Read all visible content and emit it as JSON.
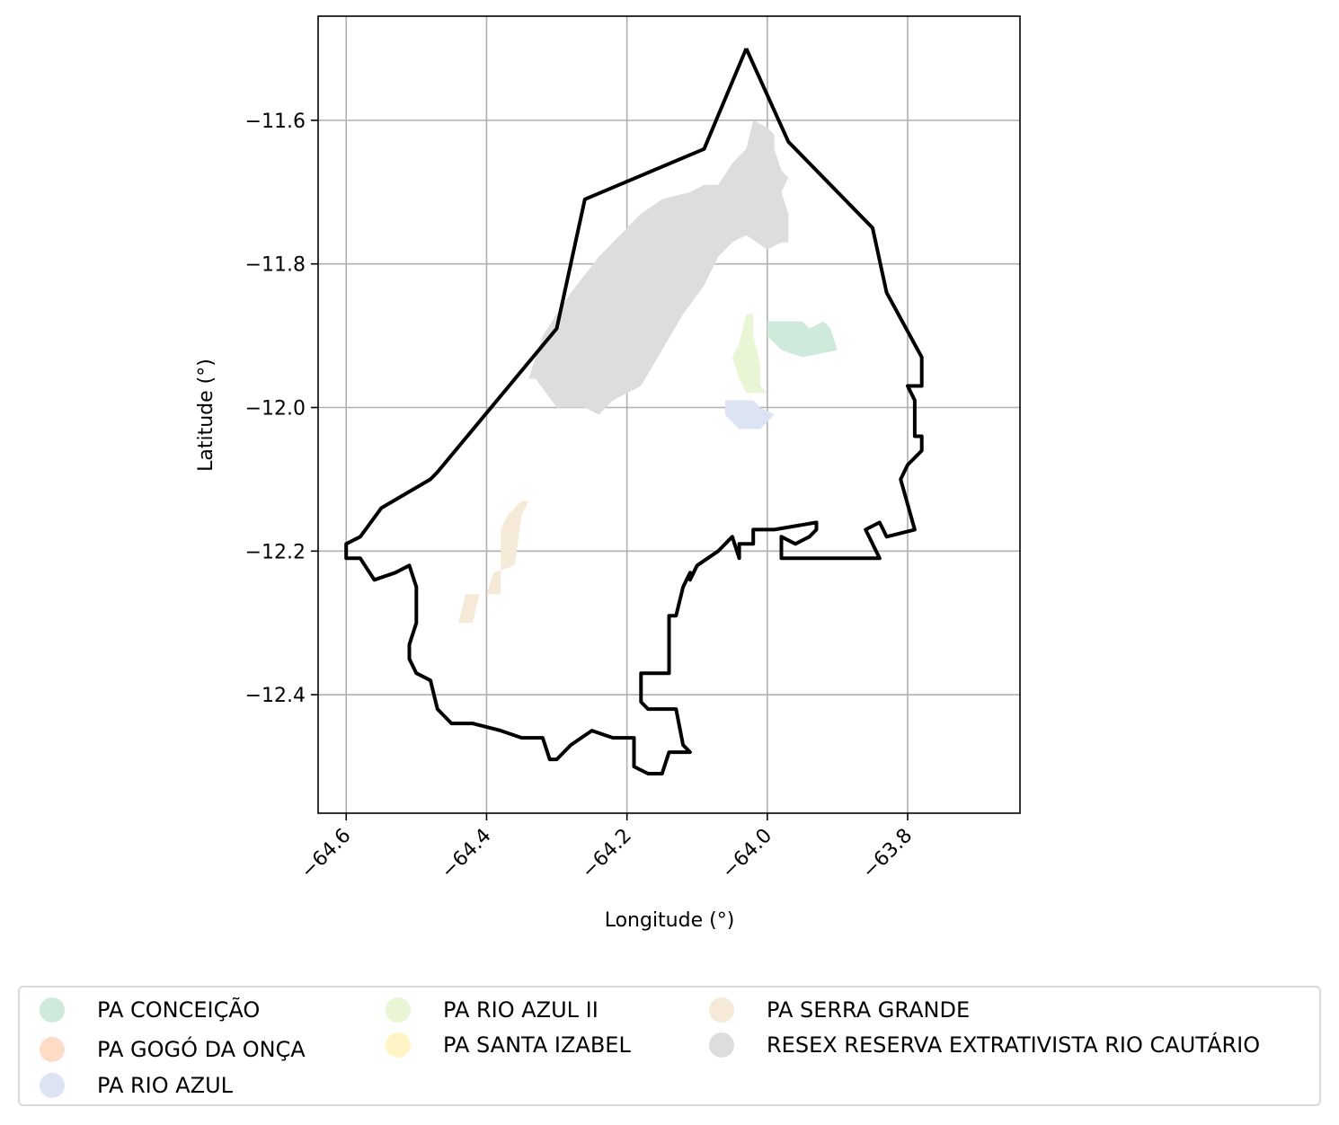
{
  "chart_data": {
    "type": "map",
    "xlabel": "Longitude (°)",
    "ylabel": "Latitude (°)",
    "xlim": [
      -64.64,
      -63.64
    ],
    "ylim": [
      -12.565,
      -11.455
    ],
    "xticks": [
      -64.6,
      -64.4,
      -64.2,
      -64.0,
      -63.8
    ],
    "xtick_labels": [
      "−64.6",
      "−64.4",
      "−64.2",
      "−64.0",
      "−63.8"
    ],
    "yticks": [
      -11.6,
      -11.8,
      -12.0,
      -12.2,
      -12.4
    ],
    "ytick_labels": [
      "−11.6",
      "−11.8",
      "−12.0",
      "−12.2",
      "−12.4"
    ],
    "grid": true,
    "legend_position": "bottom",
    "boundary": {
      "color": "#000000",
      "coordinates": [
        [
          -64.03,
          -11.5
        ],
        [
          -63.97,
          -11.63
        ],
        [
          -63.85,
          -11.75
        ],
        [
          -63.83,
          -11.84
        ],
        [
          -63.78,
          -11.93
        ],
        [
          -63.78,
          -11.97
        ],
        [
          -63.8,
          -11.97
        ],
        [
          -63.79,
          -11.99
        ],
        [
          -63.79,
          -12.04
        ],
        [
          -63.78,
          -12.04
        ],
        [
          -63.78,
          -12.06
        ],
        [
          -63.8,
          -12.08
        ],
        [
          -63.81,
          -12.1
        ],
        [
          -63.79,
          -12.17
        ],
        [
          -63.83,
          -12.18
        ],
        [
          -63.84,
          -12.16
        ],
        [
          -63.86,
          -12.17
        ],
        [
          -63.84,
          -12.21
        ],
        [
          -63.98,
          -12.21
        ],
        [
          -63.98,
          -12.18
        ],
        [
          -63.96,
          -12.19
        ],
        [
          -63.94,
          -12.18
        ],
        [
          -63.93,
          -12.17
        ],
        [
          -63.93,
          -12.16
        ],
        [
          -63.99,
          -12.17
        ],
        [
          -64.02,
          -12.17
        ],
        [
          -64.02,
          -12.19
        ],
        [
          -64.04,
          -12.19
        ],
        [
          -64.04,
          -12.21
        ],
        [
          -64.05,
          -12.18
        ],
        [
          -64.07,
          -12.2
        ],
        [
          -64.1,
          -12.22
        ],
        [
          -64.11,
          -12.24
        ],
        [
          -64.11,
          -12.23
        ],
        [
          -64.12,
          -12.25
        ],
        [
          -64.13,
          -12.29
        ],
        [
          -64.14,
          -12.29
        ],
        [
          -64.14,
          -12.37
        ],
        [
          -64.18,
          -12.37
        ],
        [
          -64.18,
          -12.41
        ],
        [
          -64.17,
          -12.42
        ],
        [
          -64.13,
          -12.42
        ],
        [
          -64.12,
          -12.47
        ],
        [
          -64.11,
          -12.48
        ],
        [
          -64.12,
          -12.48
        ],
        [
          -64.14,
          -12.48
        ],
        [
          -64.15,
          -12.51
        ],
        [
          -64.17,
          -12.51
        ],
        [
          -64.19,
          -12.5
        ],
        [
          -64.19,
          -12.46
        ],
        [
          -64.22,
          -12.46
        ],
        [
          -64.25,
          -12.45
        ],
        [
          -64.28,
          -12.47
        ],
        [
          -64.3,
          -12.49
        ],
        [
          -64.31,
          -12.49
        ],
        [
          -64.32,
          -12.46
        ],
        [
          -64.35,
          -12.46
        ],
        [
          -64.38,
          -12.45
        ],
        [
          -64.42,
          -12.44
        ],
        [
          -64.45,
          -12.44
        ],
        [
          -64.47,
          -12.42
        ],
        [
          -64.48,
          -12.38
        ],
        [
          -64.5,
          -12.37
        ],
        [
          -64.51,
          -12.35
        ],
        [
          -64.51,
          -12.33
        ],
        [
          -64.5,
          -12.3
        ],
        [
          -64.5,
          -12.25
        ],
        [
          -64.51,
          -12.22
        ],
        [
          -64.53,
          -12.23
        ],
        [
          -64.56,
          -12.24
        ],
        [
          -64.58,
          -12.21
        ],
        [
          -64.6,
          -12.21
        ],
        [
          -64.6,
          -12.19
        ],
        [
          -64.58,
          -12.18
        ],
        [
          -64.55,
          -12.14
        ],
        [
          -64.48,
          -12.1
        ],
        [
          -64.47,
          -12.09
        ],
        [
          -64.3,
          -11.89
        ],
        [
          -64.26,
          -11.71
        ],
        [
          -64.09,
          -11.64
        ],
        [
          -64.03,
          -11.5
        ]
      ]
    },
    "series": [
      {
        "name": "PA CONCEIÇÃO",
        "color": "#cfeadb",
        "polygon": [
          [
            -64.0,
            -11.88
          ],
          [
            -63.95,
            -11.88
          ],
          [
            -63.94,
            -11.89
          ],
          [
            -63.92,
            -11.88
          ],
          [
            -63.91,
            -11.89
          ],
          [
            -63.9,
            -11.92
          ],
          [
            -63.95,
            -11.93
          ],
          [
            -63.98,
            -11.92
          ],
          [
            -63.99,
            -11.91
          ],
          [
            -64.0,
            -11.9
          ]
        ]
      },
      {
        "name": "PA GOGÓ DA ONÇA",
        "color": "#fddcc7",
        "polygon": []
      },
      {
        "name": "PA RIO AZUL",
        "color": "#dce3f2",
        "polygon": [
          [
            -64.06,
            -11.99
          ],
          [
            -64.02,
            -11.99
          ],
          [
            -64.01,
            -12.0
          ],
          [
            -63.99,
            -12.01
          ],
          [
            -64.0,
            -12.02
          ],
          [
            -64.01,
            -12.03
          ],
          [
            -64.04,
            -12.03
          ],
          [
            -64.05,
            -12.02
          ],
          [
            -64.06,
            -12.01
          ]
        ]
      },
      {
        "name": "PA RIO AZUL II",
        "color": "#e8f6d5",
        "polygon": [
          [
            -64.03,
            -11.87
          ],
          [
            -64.02,
            -11.87
          ],
          [
            -64.02,
            -11.9
          ],
          [
            -64.01,
            -11.94
          ],
          [
            -64.01,
            -11.97
          ],
          [
            -64.0,
            -11.98
          ],
          [
            -64.03,
            -11.98
          ],
          [
            -64.04,
            -11.96
          ],
          [
            -64.05,
            -11.93
          ],
          [
            -64.04,
            -11.91
          ]
        ]
      },
      {
        "name": "PA SANTA IZABEL",
        "color": "#fff5c4",
        "polygon": []
      },
      {
        "name": "PA SERRA GRANDE",
        "color": "#f5e9d8",
        "polygon": [
          [
            -64.34,
            -12.13
          ],
          [
            -64.35,
            -12.13
          ],
          [
            -64.37,
            -12.15
          ],
          [
            -64.38,
            -12.17
          ],
          [
            -64.38,
            -12.26
          ],
          [
            -64.41,
            -12.26
          ],
          [
            -64.42,
            -12.3
          ],
          [
            -64.44,
            -12.3
          ],
          [
            -64.43,
            -12.26
          ],
          [
            -64.4,
            -12.26
          ],
          [
            -64.39,
            -12.23
          ],
          [
            -64.36,
            -12.22
          ],
          [
            -64.35,
            -12.15
          ]
        ]
      },
      {
        "name": "RESEX RESERVA EXTRATIVISTA RIO CAUTÁRIO",
        "color": "#dddddd",
        "polygon": [
          [
            -64.02,
            -11.6
          ],
          [
            -64.0,
            -11.61
          ],
          [
            -63.99,
            -11.62
          ],
          [
            -63.99,
            -11.64
          ],
          [
            -63.98,
            -11.67
          ],
          [
            -63.97,
            -11.68
          ],
          [
            -63.98,
            -11.7
          ],
          [
            -63.97,
            -11.73
          ],
          [
            -63.97,
            -11.77
          ],
          [
            -63.98,
            -11.77
          ],
          [
            -64.0,
            -11.78
          ],
          [
            -64.03,
            -11.76
          ],
          [
            -64.05,
            -11.77
          ],
          [
            -64.07,
            -11.79
          ],
          [
            -64.09,
            -11.83
          ],
          [
            -64.12,
            -11.87
          ],
          [
            -64.15,
            -11.92
          ],
          [
            -64.18,
            -11.97
          ],
          [
            -64.22,
            -11.99
          ],
          [
            -64.24,
            -12.01
          ],
          [
            -64.26,
            -12.0
          ],
          [
            -64.3,
            -12.0
          ],
          [
            -64.33,
            -11.96
          ],
          [
            -64.34,
            -11.96
          ],
          [
            -64.32,
            -11.9
          ],
          [
            -64.28,
            -11.84
          ],
          [
            -64.24,
            -11.79
          ],
          [
            -64.21,
            -11.76
          ],
          [
            -64.18,
            -11.73
          ],
          [
            -64.15,
            -11.71
          ],
          [
            -64.11,
            -11.7
          ],
          [
            -64.09,
            -11.69
          ],
          [
            -64.07,
            -11.69
          ],
          [
            -64.05,
            -11.66
          ],
          [
            -64.03,
            -11.64
          ]
        ]
      }
    ]
  }
}
